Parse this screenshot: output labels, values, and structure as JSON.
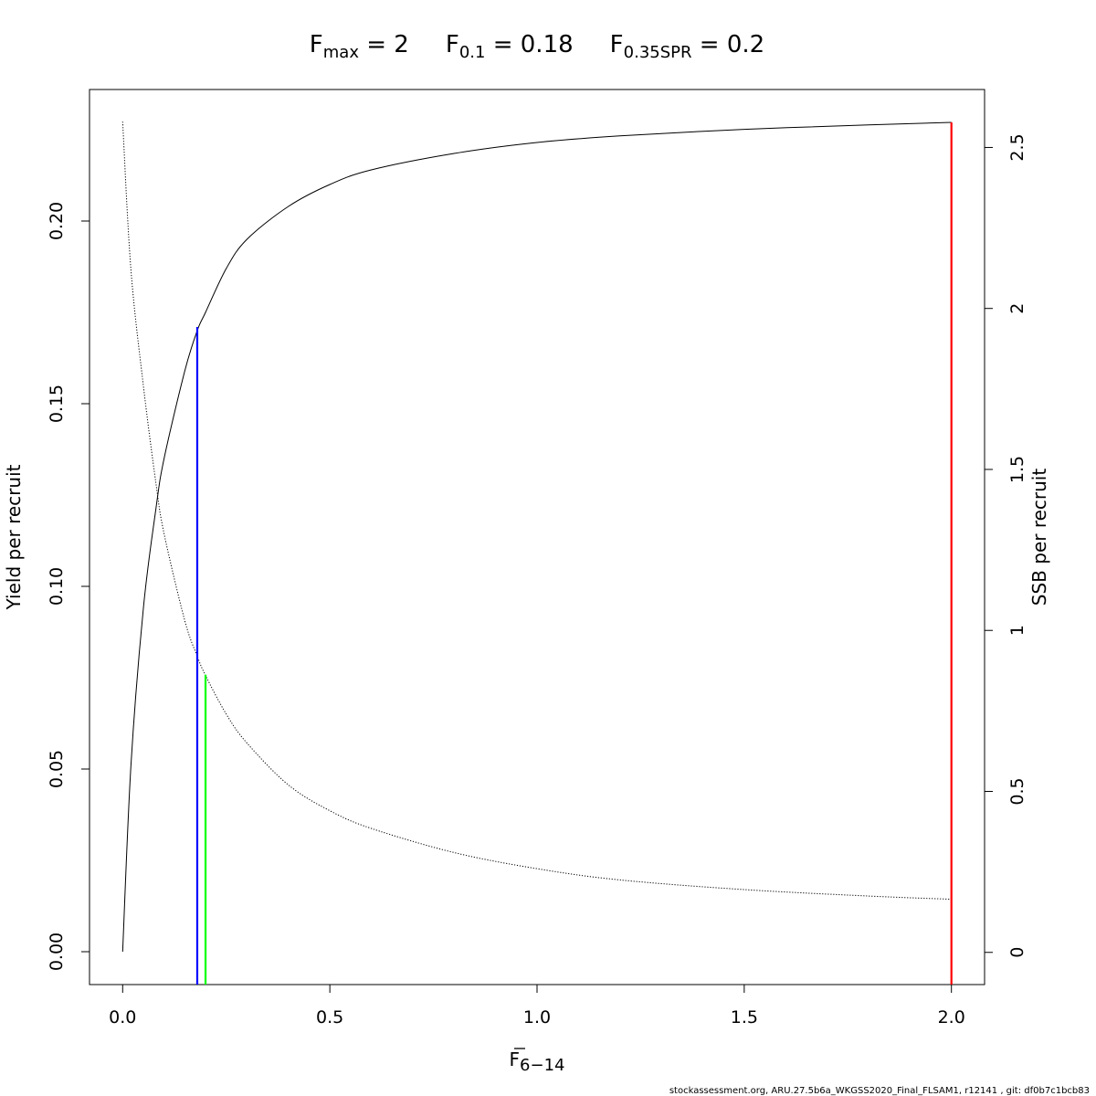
{
  "chart_data": {
    "type": "line",
    "title": {
      "fmax_main": "F",
      "fmax_sub": "max",
      "fmax_value": " = 2",
      "f01_main": "F",
      "f01_sub": "0.1",
      "f01_value": " = 0.18",
      "fspr_main": "F",
      "fspr_sub": "0.35SPR",
      "fspr_value": " = 0.2"
    },
    "xlabel_main": "F",
    "xlabel_sub": "6−14",
    "ylabel_left": "Yield per recruit",
    "ylabel_right": "SSB per recruit",
    "xlim": [
      -0.08,
      2.08
    ],
    "ylim_left": [
      -0.009,
      0.236
    ],
    "ylim_right": [
      -0.1,
      2.68
    ],
    "x_ticks": [
      0,
      0.5,
      1,
      1.5,
      2
    ],
    "x_tick_labels": [
      "0.0",
      "0.5",
      "1.0",
      "1.5",
      "2.0"
    ],
    "y_left_ticks": [
      0,
      0.05,
      0.1,
      0.15,
      0.2
    ],
    "y_left_tick_labels": [
      "0.00",
      "0.05",
      "0.10",
      "0.15",
      "0.20"
    ],
    "y_right_ticks": [
      0,
      0.5,
      1,
      1.5,
      2,
      2.5
    ],
    "y_right_tick_labels": [
      "0",
      "0.5",
      "1",
      "1.5",
      "2",
      "2.5"
    ],
    "grid": false,
    "legend": "none",
    "series": [
      {
        "name": "Yield per recruit",
        "axis": "left",
        "style": "solid",
        "color": "#000000",
        "x": [
          0,
          0.02,
          0.05,
          0.08,
          0.1,
          0.15,
          0.18,
          0.2,
          0.25,
          0.3,
          0.4,
          0.5,
          0.6,
          0.8,
          1.0,
          1.2,
          1.5,
          1.8,
          2.0
        ],
        "y": [
          0,
          0.051,
          0.094,
          0.121,
          0.135,
          0.159,
          0.17,
          0.175,
          0.187,
          0.195,
          0.204,
          0.21,
          0.214,
          0.2185,
          0.2215,
          0.2233,
          0.2251,
          0.2263,
          0.227
        ]
      },
      {
        "name": "SSB per recruit",
        "axis": "right",
        "style": "dotted",
        "color": "#000000",
        "x": [
          0,
          0.02,
          0.05,
          0.08,
          0.1,
          0.15,
          0.18,
          0.2,
          0.25,
          0.3,
          0.4,
          0.5,
          0.6,
          0.8,
          1.0,
          1.2,
          1.5,
          1.8,
          2.0
        ],
        "y": [
          2.58,
          2.12,
          1.76,
          1.46,
          1.3,
          1.03,
          0.92,
          0.86,
          0.74,
          0.65,
          0.52,
          0.44,
          0.385,
          0.31,
          0.26,
          0.225,
          0.195,
          0.175,
          0.165
        ]
      }
    ],
    "reference_lines": [
      {
        "name": "F0.1",
        "x": 0.18,
        "y_left": 0.171,
        "color": "#0000ff"
      },
      {
        "name": "F0.35SPR",
        "x": 0.2,
        "y_left": 0.0758,
        "color": "#00ff00"
      },
      {
        "name": "Fmax",
        "x": 2.0,
        "y_left": 0.227,
        "color": "#ff0000"
      }
    ]
  },
  "footer": "stockassessment.org, ARU.27.5b6a_WKGSS2020_Final_FLSAM1, r12141 , git: df0b7c1bcb83"
}
